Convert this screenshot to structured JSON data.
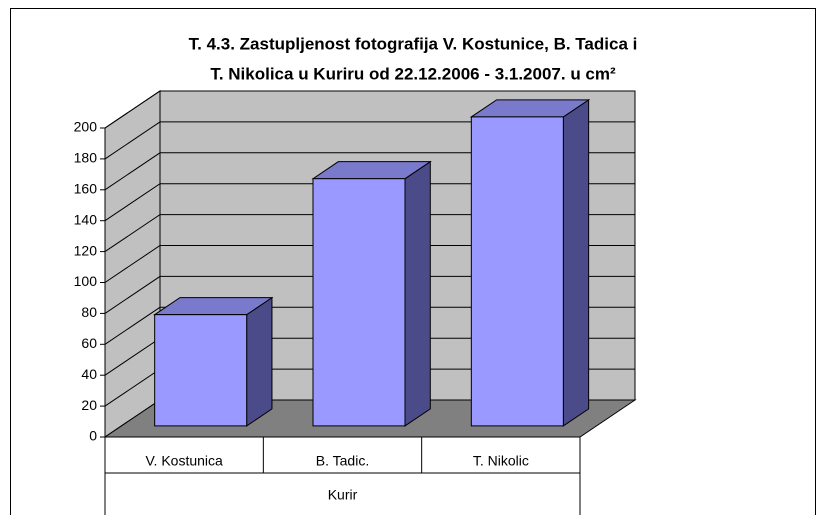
{
  "chart_data": {
    "type": "bar3d",
    "title": [
      "T. 4.3. Zastupljenost fotografija V. Kostunice, B. Tadica i",
      "T. Nikolica u Kuriru od 22.12.2006 - 3.1.2007. u cm²"
    ],
    "categories": [
      "V. Kostunica",
      "B. Tadic.",
      "T. Nikolic"
    ],
    "group": "Kurir",
    "values": [
      72,
      160,
      200
    ],
    "color": "#9999ff",
    "ylim": [
      0,
      200
    ],
    "yticks": [
      0,
      20,
      40,
      60,
      80,
      100,
      120,
      140,
      160,
      180,
      200
    ],
    "grid": true
  }
}
